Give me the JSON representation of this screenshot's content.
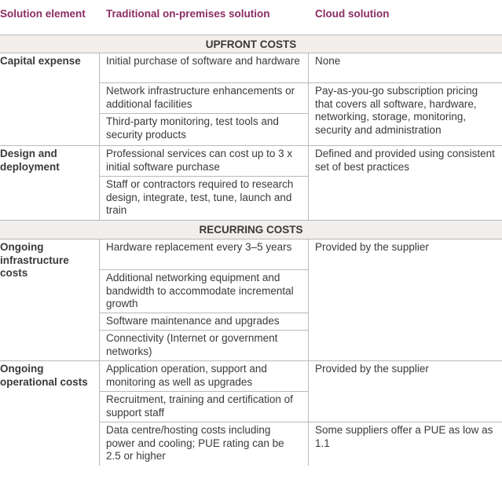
{
  "headers": {
    "col1": "Solution element",
    "col2": "Traditional on-premises solution",
    "col3": "Cloud solution"
  },
  "sections": {
    "upfront": "UPFRONT COSTS",
    "recurring": "RECURRING COSTS"
  },
  "groups": {
    "capital": {
      "label": "Capital expense",
      "traditional": [
        "Initial purchase of software and hardware",
        "Network infrastructure enhancements or additional facilities",
        "Third-party monitoring, test tools and security products"
      ],
      "cloud": [
        "None",
        "Pay-as-you-go subscription pricing that covers all software, hardware, networking, storage, monitoring, security and administration"
      ]
    },
    "design": {
      "label": "Design and deployment",
      "traditional": [
        "Professional services can cost up to 3 x initial software purchase",
        "Staff or contractors required to research design, integrate, test, tune, launch and train"
      ],
      "cloud": [
        "Defined and provided using consistent set of best practices"
      ]
    },
    "infra": {
      "label": "Ongoing infrastructure costs",
      "traditional": [
        "Hardware replacement every 3–5 years",
        "Additional networking equipment and bandwidth to accommodate incremental growth",
        "Software maintenance and upgrades",
        "Connectivity (Internet or government networks)"
      ],
      "cloud": [
        "Provided by the supplier"
      ]
    },
    "ops": {
      "label": "Ongoing operational costs",
      "traditional": [
        "Application operation, support and monitoring as well as upgrades",
        "Recruitment, training and certification of support staff",
        "Data centre/hosting costs including power and cooling; PUE rating can be 2.5 or higher"
      ],
      "cloud": [
        "Provided by the supplier",
        "Some suppliers offer a PUE as low as 1.1"
      ]
    }
  }
}
